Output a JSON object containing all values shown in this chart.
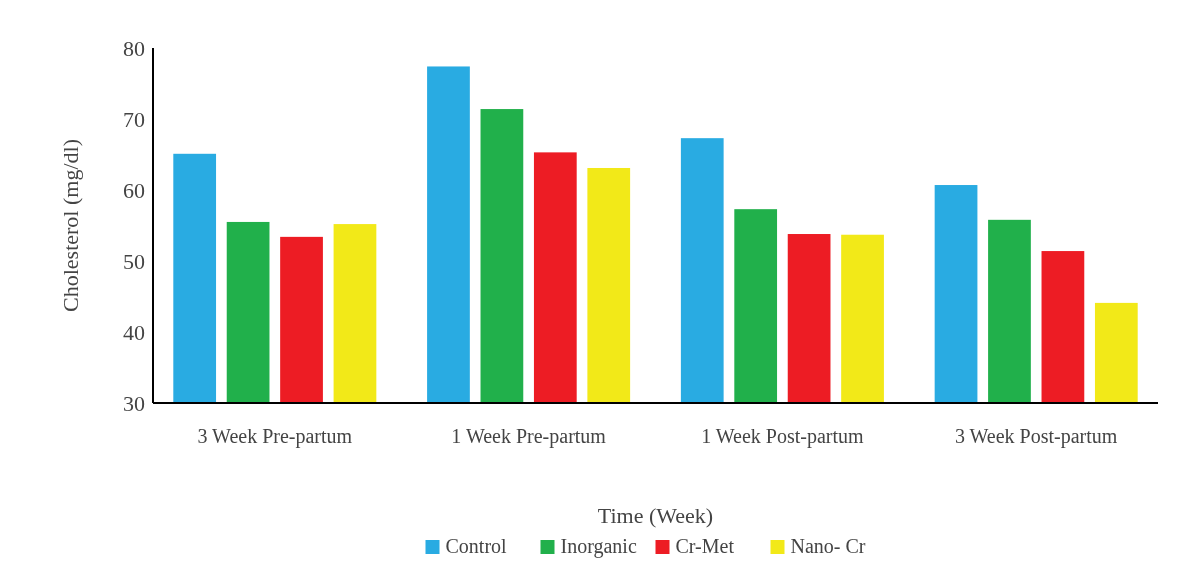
{
  "chart_data": {
    "type": "bar",
    "xlabel": "Time (Week)",
    "ylabel": "Cholesterol (mg/dl)",
    "categories": [
      "3 Week Pre-partum",
      "1 Week Pre-partum",
      "1 Week Post-partum",
      "3 Week Post-partum"
    ],
    "series": [
      {
        "name": "Control",
        "color": "#29abe2",
        "values": [
          65.1,
          77.4,
          67.3,
          60.7
        ]
      },
      {
        "name": "Inorganic",
        "color": "#21b04b",
        "values": [
          55.5,
          71.4,
          57.3,
          55.8
        ]
      },
      {
        "name": "Cr-Met",
        "color": "#ed1c24",
        "values": [
          53.4,
          65.3,
          53.8,
          51.4
        ]
      },
      {
        "name": "Nano- Cr",
        "color": "#f2e918",
        "values": [
          55.2,
          63.1,
          53.7,
          44.1
        ]
      }
    ],
    "ylim": [
      30,
      80
    ],
    "yticks": [
      30,
      40,
      50,
      60,
      70,
      80
    ],
    "legend": "bottom"
  }
}
